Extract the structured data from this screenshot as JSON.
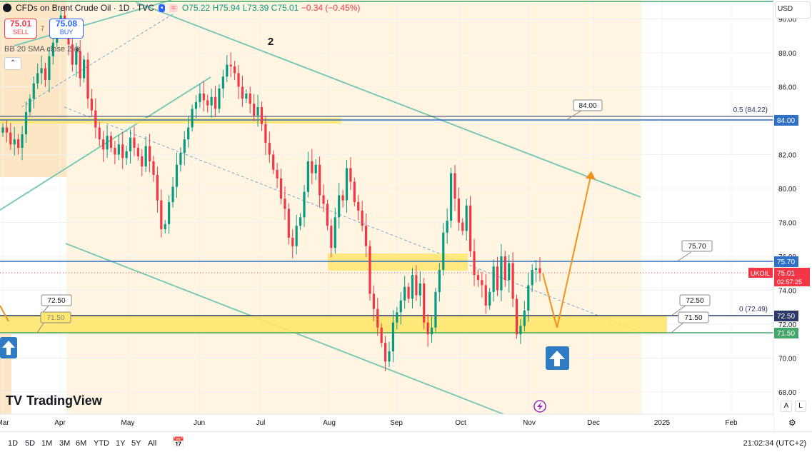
{
  "header": {
    "title": "CFDs on Brent Crude Oil · 1D · TVC",
    "open": "O75.22",
    "high": "H75.94",
    "low": "L73.39",
    "close": "C75.01",
    "change": "−0.34 (−0.45%)"
  },
  "trade": {
    "sell_price": "75.01",
    "sell_label": "SELL",
    "spread": "7",
    "buy_price": "75.08",
    "buy_label": "BUY"
  },
  "indicator": {
    "label": "BB 20 SMA close 2"
  },
  "logo": {
    "text": "TradingView"
  },
  "currency": "USD",
  "timeframes": [
    "1D",
    "5D",
    "1M",
    "3M",
    "6M",
    "YTD",
    "1Y",
    "5Y",
    "All"
  ],
  "clock": "21:02:34 (UTC+2)",
  "scale_buttons": {
    "auto": "A",
    "log": "L"
  },
  "colors": {
    "up": "#089981",
    "down": "#f23645",
    "channel": "#7ec8b8",
    "fill": "#fff5e0",
    "zone": "#ffe66d",
    "forecast": "#f0921d",
    "blue_line": "#2f6fc4",
    "navy_line": "#2b3a67",
    "green_line": "#44a66b"
  },
  "icons": [
    "eye-icon",
    "chevron-up-icon",
    "arrow-up-icon",
    "lightning-icon",
    "calendar-icon",
    "gear-icon"
  ],
  "chart_data": {
    "type": "candlestick",
    "symbol_label": "UKOIL",
    "last_price": "75.01",
    "countdown": "02:57:25",
    "ylim": [
      67,
      91
    ],
    "y_ticks": [
      "68.00",
      "70.00",
      "72.00",
      "74.00",
      "76.00",
      "78.00",
      "80.00",
      "82.00",
      "84.00",
      "86.00",
      "88.00",
      "90.00"
    ],
    "x_ticks": [
      "Mar",
      "Apr",
      "May",
      "Jun",
      "Jul",
      "Aug",
      "Sep",
      "Oct",
      "Nov",
      "Dec",
      "2025",
      "Feb"
    ],
    "wave_label": "2",
    "levels": [
      {
        "value": 84.0,
        "label": "84.00",
        "fib_label": "0.5 (84.22)"
      },
      {
        "value": 75.7,
        "label": "75.70"
      },
      {
        "value": 72.5,
        "label": "72.50",
        "fib_label": "0 (72.49)"
      },
      {
        "value": 71.5,
        "label": "71.50"
      }
    ],
    "axis_labels": [
      "84.00",
      "75.70",
      "72.50",
      "71.50"
    ],
    "forecast_path": [
      {
        "date": "Oct 31",
        "y": 75.0
      },
      {
        "date": "Nov 12",
        "y": 71.8
      },
      {
        "date": "Nov 26",
        "y": 80.9
      }
    ],
    "closes": [
      83.6,
      83.3,
      82.6,
      82.9,
      82.4,
      83.2,
      84.5,
      85.3,
      86.2,
      86.8,
      87.1,
      86.4,
      87.8,
      88.6,
      89.5,
      90.2,
      89.2,
      88.5,
      87.3,
      88.1,
      86.5,
      87.6,
      85.3,
      84.6,
      83.6,
      82.9,
      82.3,
      83.1,
      82.4,
      82.0,
      82.6,
      81.8,
      82.2,
      83.0,
      82.4,
      81.9,
      81.3,
      82.5,
      81.6,
      80.8,
      79.3,
      77.6,
      77.9,
      79.2,
      80.1,
      81.4,
      82.1,
      82.9,
      83.6,
      84.7,
      85.1,
      85.6,
      85.2,
      84.9,
      85.4,
      84.7,
      85.9,
      86.6,
      87.3,
      87.2,
      86.8,
      86.0,
      85.3,
      85.6,
      85.0,
      84.3,
      84.8,
      83.8,
      82.7,
      82.0,
      81.1,
      80.6,
      79.4,
      78.8,
      77.1,
      76.6,
      77.8,
      78.3,
      79.8,
      81.6,
      80.9,
      81.4,
      79.6,
      79.1,
      77.8,
      76.5,
      78.3,
      79.6,
      79.3,
      81.2,
      80.4,
      79.2,
      78.7,
      77.8,
      76.6,
      73.8,
      72.9,
      71.8,
      70.9,
      69.8,
      70.4,
      72.1,
      72.7,
      73.4,
      74.2,
      73.5,
      74.9,
      73.7,
      74.4,
      72.1,
      71.4,
      71.8,
      73.9,
      75.2,
      77.4,
      78.1,
      80.9,
      79.4,
      78.0,
      77.5,
      79.0,
      76.3,
      74.9,
      74.6,
      74.3,
      73.1,
      73.9,
      75.4,
      74.0,
      76.0,
      74.6,
      75.6,
      73.5,
      71.4,
      71.9,
      72.8,
      74.3,
      75.2,
      75.3,
      75.01
    ]
  }
}
